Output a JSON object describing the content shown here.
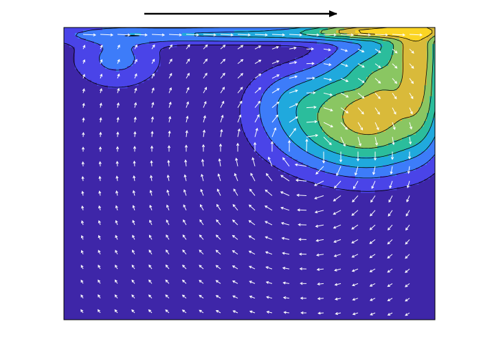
{
  "chart_data": {
    "type": "heatmap",
    "subtype": "filled-contour-with-vector-field",
    "title": "",
    "xlabel": "",
    "ylabel": "",
    "xlim": [
      0,
      1
    ],
    "ylim": [
      0,
      0.8
    ],
    "axes_ticks": "none",
    "grid": false,
    "colormap": [
      "#3e26a8",
      "#4a44e8",
      "#3d7cf9",
      "#20a9dd",
      "#2bbd9c",
      "#8ac662",
      "#d9ba3a",
      "#fbd524"
    ],
    "contour_levels": [
      0.02,
      0.05,
      0.09,
      0.14,
      0.2,
      0.28,
      0.38
    ],
    "lid_direction": "right",
    "lid_arrow_color": "#000000",
    "vector_color": "#ffffff",
    "vector_grid": {
      "nx": 20,
      "ny": 20
    },
    "vortices": [
      {
        "kind": "primary",
        "center_x": 0.66,
        "center_y": 0.46
      },
      {
        "kind": "corner-secondary",
        "center_x": 0.08,
        "center_y": 0.74
      }
    ]
  }
}
